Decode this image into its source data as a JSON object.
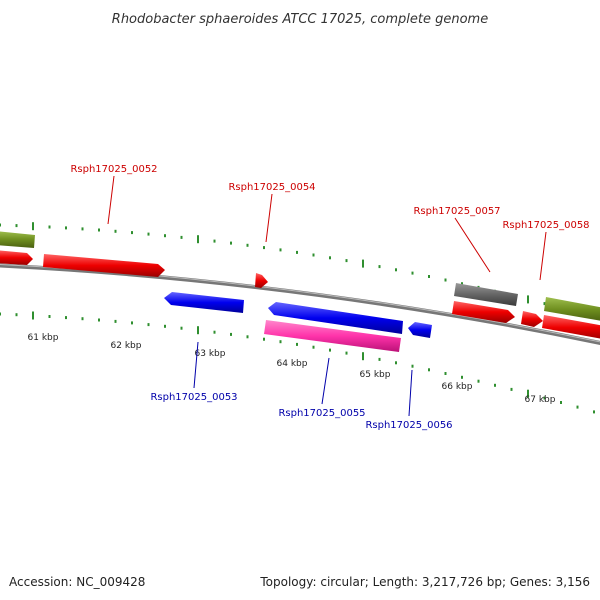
{
  "title": "Rhodobacter sphaeroides ATCC 17025, complete genome",
  "footer": {
    "accession": "Accession: NC_009428",
    "summary": "Topology: circular; Length: 3,217,726 bp; Genes: 3,156"
  },
  "colors": {
    "forward_cds": "#ee0000",
    "reverse_cds": "#0000ee",
    "pink_feature": "#ff33aa",
    "gray_feature": "#666666",
    "olive_feature": "#6f8f1f",
    "tick": "#2f8f2f",
    "forward_label": "#cc0000",
    "reverse_label": "#0000aa",
    "backbone": "#777777"
  },
  "ticks": [
    {
      "label": "61 kbp"
    },
    {
      "label": "62 kbp"
    },
    {
      "label": "63 kbp"
    },
    {
      "label": "64 kbp"
    },
    {
      "label": "65 kbp"
    },
    {
      "label": "66 kbp"
    },
    {
      "label": "67 kbp"
    }
  ],
  "gene_labels": [
    {
      "text": "Rsph17025_0052",
      "strand": "forward"
    },
    {
      "text": "Rsph17025_0053",
      "strand": "reverse"
    },
    {
      "text": "Rsph17025_0054",
      "strand": "forward"
    },
    {
      "text": "Rsph17025_0055",
      "strand": "reverse"
    },
    {
      "text": "Rsph17025_0056",
      "strand": "reverse"
    },
    {
      "text": "Rsph17025_0057",
      "strand": "forward"
    },
    {
      "text": "Rsph17025_0058",
      "strand": "forward"
    }
  ]
}
